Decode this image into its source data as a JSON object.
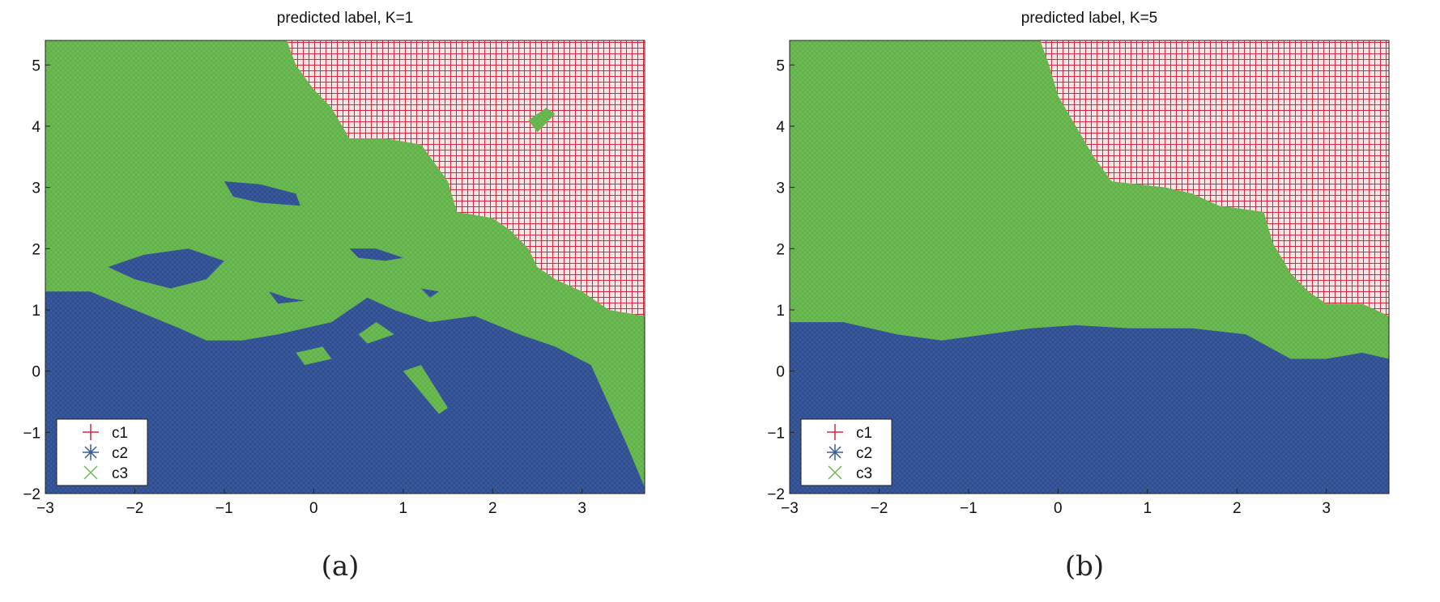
{
  "colors": {
    "c1": "#d7263d",
    "c2": "#3a5a9e",
    "c3": "#6dbb54"
  },
  "chart_data": [
    {
      "type": "heatmap",
      "title": "predicted label,  K=1",
      "caption": "(a)",
      "xlim": [
        -3,
        3.7
      ],
      "ylim": [
        -2,
        5.4
      ],
      "x_ticks": [
        -3,
        -2,
        -1,
        0,
        1,
        2,
        3
      ],
      "y_ticks": [
        -2,
        -1,
        0,
        1,
        2,
        3,
        4,
        5
      ],
      "x_tick_labels": [
        "−3",
        "−2",
        "−1",
        "0",
        "1",
        "2",
        "3"
      ],
      "y_tick_labels": [
        "−2",
        "−1",
        "0",
        "1",
        "2",
        "3",
        "4",
        "5"
      ],
      "grid": false,
      "legend": {
        "position": "bottom-left",
        "entries": [
          "c1",
          "c2",
          "c3"
        ],
        "markers": [
          "+",
          "*",
          "x"
        ]
      },
      "region_boundaries": {
        "c1": [
          [
            -0.3,
            5.4
          ],
          [
            3.7,
            5.4
          ],
          [
            3.7,
            0.9
          ],
          [
            3.3,
            1.0
          ],
          [
            3.0,
            1.3
          ],
          [
            2.7,
            1.5
          ],
          [
            2.5,
            1.7
          ],
          [
            2.4,
            2.0
          ],
          [
            2.2,
            2.3
          ],
          [
            2.0,
            2.5
          ],
          [
            1.6,
            2.6
          ],
          [
            1.5,
            3.1
          ],
          [
            1.2,
            3.7
          ],
          [
            0.8,
            3.8
          ],
          [
            0.4,
            3.8
          ],
          [
            0.2,
            4.3
          ],
          [
            0.0,
            4.6
          ],
          [
            -0.2,
            5.0
          ]
        ],
        "c2": [
          [
            -3,
            1.3
          ],
          [
            -2.5,
            1.3
          ],
          [
            -2.0,
            1.0
          ],
          [
            -1.5,
            0.7
          ],
          [
            -1.2,
            0.5
          ],
          [
            -0.8,
            0.5
          ],
          [
            -0.4,
            0.6
          ],
          [
            0.2,
            0.8
          ],
          [
            0.6,
            1.2
          ],
          [
            0.9,
            1.0
          ],
          [
            1.3,
            0.8
          ],
          [
            1.8,
            0.9
          ],
          [
            2.3,
            0.6
          ],
          [
            2.7,
            0.4
          ],
          [
            3.1,
            0.1
          ],
          [
            3.5,
            -1.2
          ],
          [
            3.7,
            -1.9
          ],
          [
            3.7,
            -2.0
          ],
          [
            -3,
            -2.0
          ]
        ]
      },
      "c2_islands": [
        [
          [
            -1.0,
            3.1
          ],
          [
            -0.6,
            3.05
          ],
          [
            -0.2,
            2.9
          ],
          [
            -0.15,
            2.7
          ],
          [
            -0.6,
            2.75
          ],
          [
            -0.9,
            2.85
          ]
        ],
        [
          [
            -2.3,
            1.7
          ],
          [
            -1.9,
            1.9
          ],
          [
            -1.4,
            2.0
          ],
          [
            -1.0,
            1.8
          ],
          [
            -1.2,
            1.5
          ],
          [
            -1.6,
            1.35
          ],
          [
            -2.0,
            1.5
          ]
        ],
        [
          [
            0.4,
            2.0
          ],
          [
            0.7,
            2.0
          ],
          [
            1.0,
            1.85
          ],
          [
            0.8,
            1.8
          ],
          [
            0.5,
            1.85
          ]
        ],
        [
          [
            -0.5,
            1.3
          ],
          [
            -0.3,
            1.2
          ],
          [
            -0.1,
            1.15
          ],
          [
            -0.4,
            1.1
          ]
        ],
        [
          [
            1.2,
            1.35
          ],
          [
            1.4,
            1.3
          ],
          [
            1.3,
            1.2
          ]
        ]
      ],
      "c3_islands": [
        [
          [
            -0.2,
            0.3
          ],
          [
            0.1,
            0.4
          ],
          [
            0.2,
            0.2
          ],
          [
            -0.1,
            0.1
          ]
        ],
        [
          [
            0.5,
            0.6
          ],
          [
            0.7,
            0.8
          ],
          [
            0.9,
            0.6
          ],
          [
            0.6,
            0.45
          ]
        ],
        [
          [
            1.0,
            0.0
          ],
          [
            1.2,
            0.1
          ],
          [
            1.5,
            -0.6
          ],
          [
            1.4,
            -0.7
          ]
        ],
        [
          [
            2.4,
            4.1
          ],
          [
            2.6,
            4.3
          ],
          [
            2.7,
            4.2
          ],
          [
            2.5,
            3.9
          ]
        ]
      ]
    },
    {
      "type": "heatmap",
      "title": "predicted label,  K=5",
      "caption": "(b)",
      "xlim": [
        -3,
        3.7
      ],
      "ylim": [
        -2,
        5.4
      ],
      "x_ticks": [
        -3,
        -2,
        -1,
        0,
        1,
        2,
        3
      ],
      "y_ticks": [
        -2,
        -1,
        0,
        1,
        2,
        3,
        4,
        5
      ],
      "x_tick_labels": [
        "−3",
        "−2",
        "−1",
        "0",
        "1",
        "2",
        "3"
      ],
      "y_tick_labels": [
        "−2",
        "−1",
        "0",
        "1",
        "2",
        "3",
        "4",
        "5"
      ],
      "grid": false,
      "legend": {
        "position": "bottom-left",
        "entries": [
          "c1",
          "c2",
          "c3"
        ],
        "markers": [
          "+",
          "*",
          "x"
        ]
      },
      "region_boundaries": {
        "c1": [
          [
            -0.2,
            5.4
          ],
          [
            3.7,
            5.4
          ],
          [
            3.7,
            0.9
          ],
          [
            3.4,
            1.1
          ],
          [
            3.0,
            1.1
          ],
          [
            2.8,
            1.3
          ],
          [
            2.6,
            1.6
          ],
          [
            2.4,
            2.1
          ],
          [
            2.3,
            2.6
          ],
          [
            1.8,
            2.7
          ],
          [
            1.5,
            2.9
          ],
          [
            1.2,
            3.0
          ],
          [
            0.6,
            3.1
          ],
          [
            0.4,
            3.5
          ],
          [
            0.2,
            4.0
          ],
          [
            0.0,
            4.5
          ],
          [
            -0.1,
            5.0
          ]
        ],
        "c2": [
          [
            -3,
            0.8
          ],
          [
            -2.4,
            0.8
          ],
          [
            -1.8,
            0.6
          ],
          [
            -1.3,
            0.5
          ],
          [
            -0.8,
            0.6
          ],
          [
            -0.3,
            0.7
          ],
          [
            0.2,
            0.75
          ],
          [
            0.8,
            0.7
          ],
          [
            1.5,
            0.7
          ],
          [
            2.1,
            0.6
          ],
          [
            2.6,
            0.2
          ],
          [
            3.0,
            0.2
          ],
          [
            3.4,
            0.3
          ],
          [
            3.7,
            0.2
          ],
          [
            3.7,
            -2.0
          ],
          [
            -3,
            -2.0
          ]
        ]
      }
    }
  ]
}
